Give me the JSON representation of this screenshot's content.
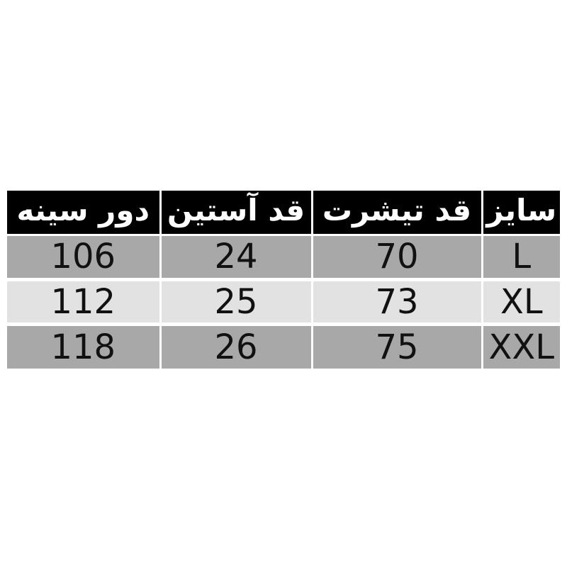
{
  "page": {
    "background": "#ffffff",
    "description_name": "size-chart-table-image"
  },
  "colors": {
    "page_bg": "#ffffff",
    "header_bg": "#000000",
    "header_text": "#ffffff",
    "row_odd_bg": "#a8a8a8",
    "row_even_bg": "#e2e2e2",
    "cell_text": "#111111",
    "border": "#ffffff"
  },
  "table": {
    "direction": "rtl",
    "columns": [
      {
        "id": "size",
        "label": "سایز"
      },
      {
        "id": "tshirt-length",
        "label": "قد تیشرت"
      },
      {
        "id": "sleeve-length",
        "label": "قد آستین"
      },
      {
        "id": "chest",
        "label": "دور سینه"
      }
    ],
    "rows": [
      {
        "cells": [
          "L",
          "70",
          "24",
          "106"
        ]
      },
      {
        "cells": [
          "XL",
          "73",
          "25",
          "112"
        ]
      },
      {
        "cells": [
          "XXL",
          "75",
          "26",
          "118"
        ]
      }
    ]
  },
  "chart_data": {
    "type": "table",
    "direction": "rtl",
    "title": "",
    "columns": [
      "سایز",
      "قد تیشرت",
      "قد آستین",
      "دور سینه"
    ],
    "rows": [
      [
        "L",
        70,
        24,
        106
      ],
      [
        "XL",
        73,
        25,
        112
      ],
      [
        "XXL",
        75,
        26,
        118
      ]
    ],
    "layout": {
      "header_style": "black-bg-white-bold-text",
      "row_striping": [
        "#a8a8a8",
        "#e2e2e2",
        "#a8a8a8"
      ],
      "grid": "white-separators"
    }
  }
}
